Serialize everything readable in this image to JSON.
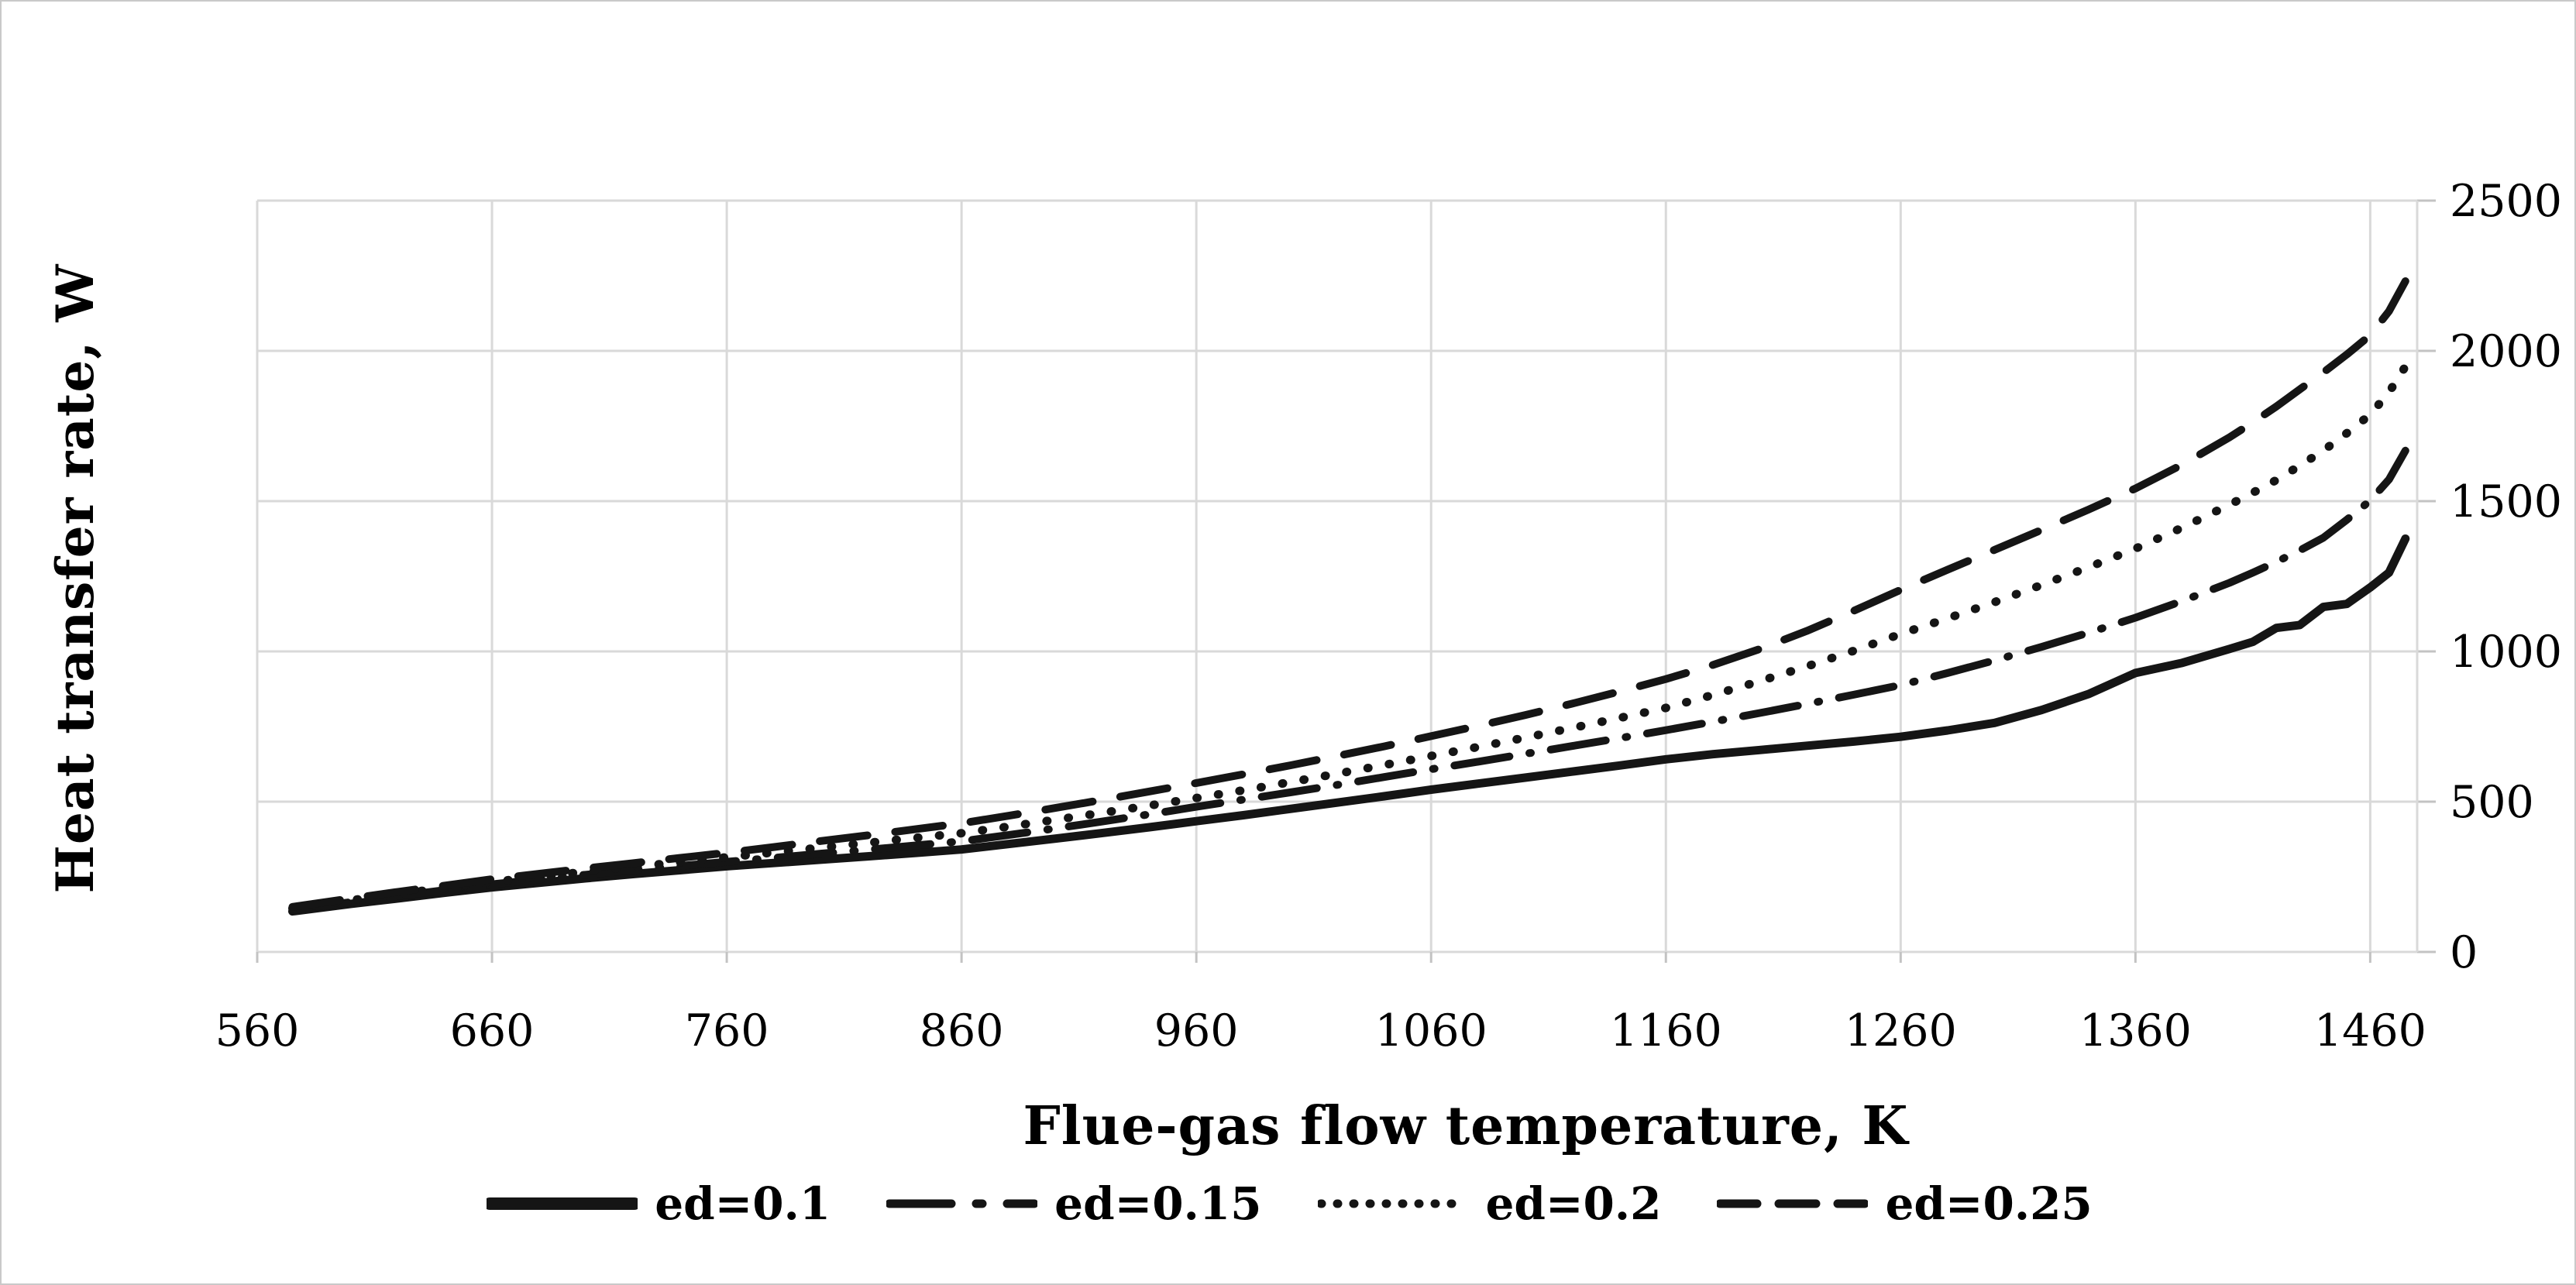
{
  "chart_data": {
    "type": "line",
    "title": "",
    "xlabel": "Flue-gas flow temperature, K",
    "ylabel": "Heat transfer rate, W",
    "xlim": [
      560,
      1480
    ],
    "ylim": [
      0,
      2500
    ],
    "x_ticks": [
      560,
      660,
      760,
      860,
      960,
      1060,
      1160,
      1260,
      1360,
      1460
    ],
    "y_ticks": [
      0,
      500,
      1000,
      1500,
      2000,
      2500
    ],
    "y_tick_side": "right",
    "grid": true,
    "legend_position": "bottom",
    "line_color": "#151515",
    "gridline_color": "#d9d9d9",
    "background_color": "#ffffff",
    "x": [
      575,
      600,
      620,
      640,
      660,
      680,
      700,
      720,
      740,
      760,
      780,
      800,
      820,
      840,
      860,
      880,
      900,
      920,
      940,
      960,
      980,
      1000,
      1020,
      1040,
      1060,
      1080,
      1100,
      1120,
      1140,
      1160,
      1180,
      1200,
      1220,
      1240,
      1260,
      1280,
      1300,
      1320,
      1340,
      1360,
      1380,
      1400,
      1410,
      1420,
      1430,
      1440,
      1450,
      1460,
      1468,
      1475
    ],
    "series": [
      {
        "name": "ed=0.1",
        "style": "solid",
        "values": [
          135,
          160,
          178,
          197,
          215,
          230,
          245,
          259,
          272,
          285,
          296,
          307,
          318,
          329,
          341,
          359,
          377,
          396,
          415,
          435,
          455,
          476,
          497,
          518,
          540,
          560,
          580,
          600,
          620,
          641,
          658,
          672,
          686,
          700,
          716,
          737,
          762,
          805,
          858,
          928,
          962,
          1008,
          1032,
          1078,
          1088,
          1148,
          1158,
          1213,
          1262,
          1375
        ]
      },
      {
        "name": "ed=0.15",
        "style": "dash-dot",
        "values": [
          140,
          166,
          186,
          206,
          225,
          241,
          257,
          272,
          286,
          300,
          313,
          327,
          340,
          354,
          368,
          389,
          411,
          434,
          458,
          483,
          507,
          531,
          556,
          582,
          608,
          633,
          659,
          685,
          711,
          738,
          766,
          795,
          825,
          856,
          888,
          928,
          970,
          1015,
          1062,
          1112,
          1168,
          1228,
          1262,
          1298,
          1336,
          1378,
          1438,
          1502,
          1572,
          1668
        ]
      },
      {
        "name": "ed=0.2",
        "style": "dotted",
        "values": [
          145,
          172,
          193,
          213,
          233,
          250,
          267,
          283,
          299,
          315,
          331,
          347,
          363,
          379,
          395,
          417,
          440,
          463,
          487,
          512,
          538,
          565,
          593,
          622,
          652,
          682,
          713,
          745,
          778,
          812,
          855,
          901,
          950,
          1002,
          1058,
          1110,
          1164,
          1221,
          1280,
          1342,
          1412,
          1488,
          1528,
          1570,
          1618,
          1668,
          1726,
          1788,
          1862,
          1948
        ]
      },
      {
        "name": "ed=0.25",
        "style": "dashed",
        "values": [
          150,
          178,
          200,
          221,
          242,
          260,
          278,
          295,
          313,
          330,
          349,
          369,
          388,
          408,
          428,
          453,
          479,
          506,
          534,
          562,
          591,
          621,
          652,
          684,
          718,
          752,
          788,
          826,
          866,
          908,
          955,
          1008,
          1068,
          1135,
          1205,
          1272,
          1338,
          1404,
          1472,
          1542,
          1622,
          1712,
          1762,
          1815,
          1872,
          1928,
          1988,
          2052,
          2132,
          2232
        ]
      }
    ]
  }
}
